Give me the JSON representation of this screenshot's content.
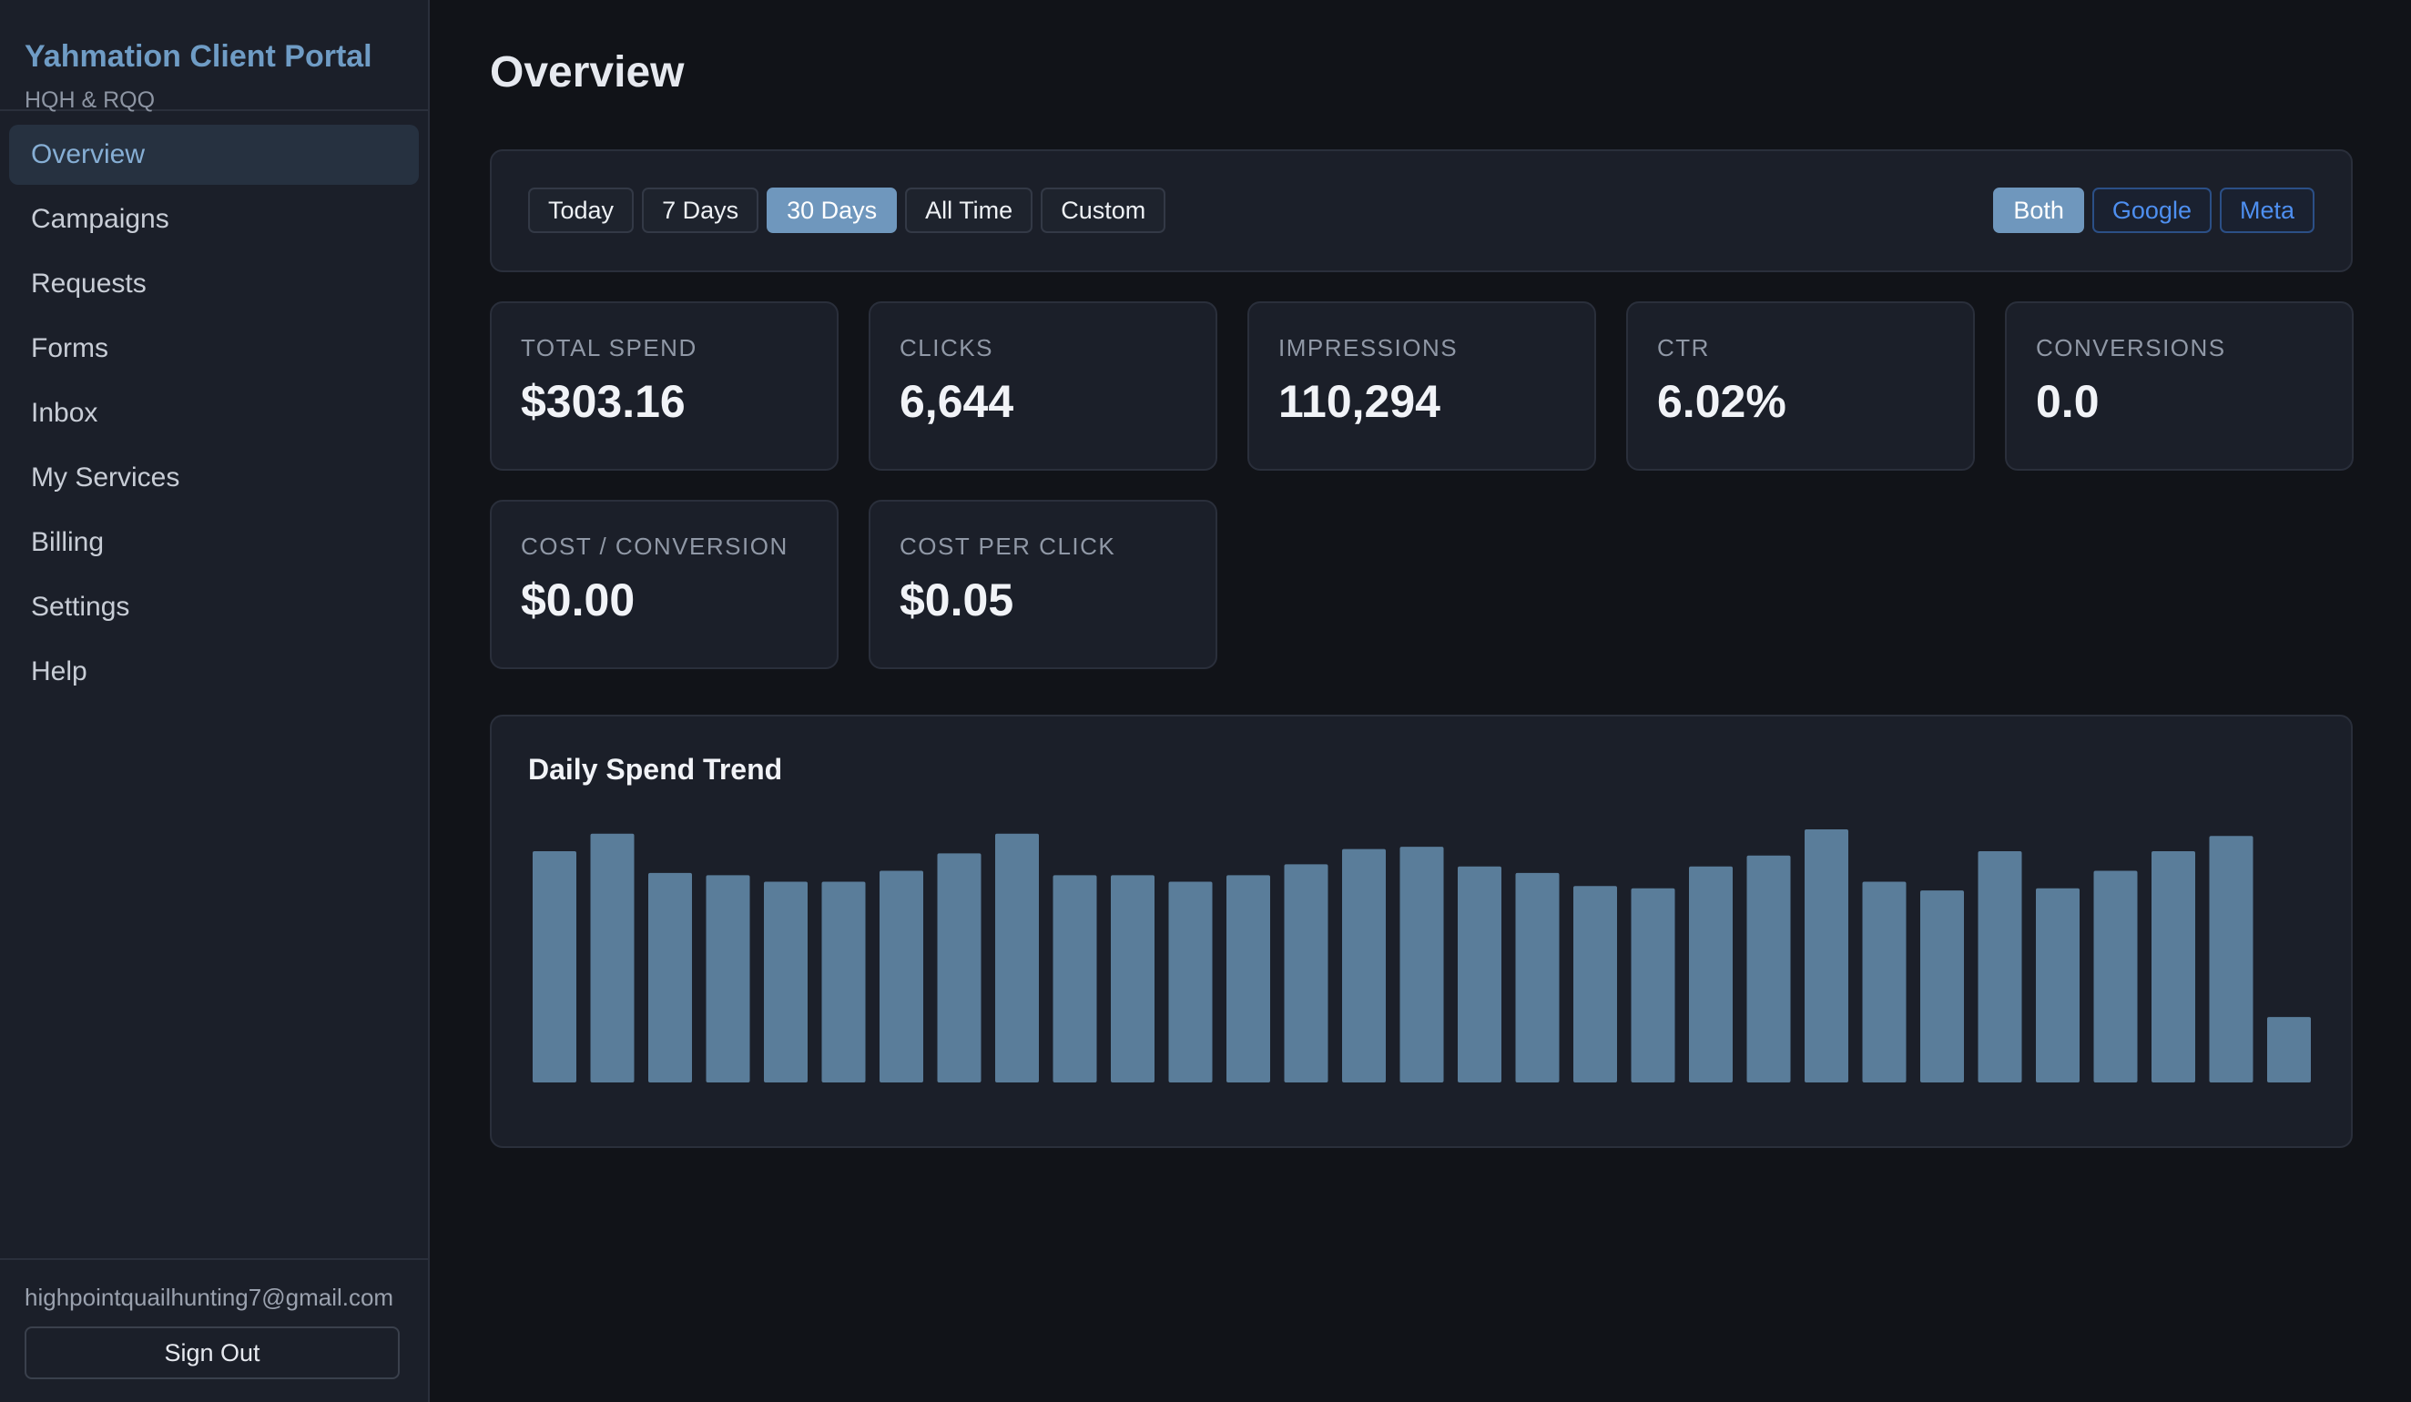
{
  "brand": {
    "title": "Yahmation Client Portal",
    "subtitle": "HQH & RQQ"
  },
  "nav": [
    {
      "label": "Overview",
      "active": true
    },
    {
      "label": "Campaigns"
    },
    {
      "label": "Requests"
    },
    {
      "label": "Forms"
    },
    {
      "label": "Inbox"
    },
    {
      "label": "My Services"
    },
    {
      "label": "Billing"
    },
    {
      "label": "Settings"
    },
    {
      "label": "Help"
    }
  ],
  "user": {
    "email": "highpointquailhunting7@gmail.com",
    "signout_label": "Sign Out"
  },
  "page": {
    "title": "Overview"
  },
  "filters": {
    "ranges": [
      "Today",
      "7 Days",
      "30 Days",
      "All Time",
      "Custom"
    ],
    "active_range": "30 Days",
    "platforms": [
      "Both",
      "Google",
      "Meta"
    ],
    "active_platform": "Both"
  },
  "stats": [
    {
      "label": "TOTAL SPEND",
      "value": "$303.16"
    },
    {
      "label": "CLICKS",
      "value": "6,644"
    },
    {
      "label": "IMPRESSIONS",
      "value": "110,294"
    },
    {
      "label": "CTR",
      "value": "6.02%"
    },
    {
      "label": "CONVERSIONS",
      "value": "0.0"
    },
    {
      "label": "COST / CONVERSION",
      "value": "$0.00"
    },
    {
      "label": "COST PER CLICK",
      "value": "$0.05"
    }
  ],
  "colors": {
    "accent": "#6f9cc5",
    "bar": "#5a7d9a",
    "background": "#111318",
    "panel": "#1b1f29"
  },
  "chart_data": {
    "type": "bar",
    "title": "Daily Spend Trend",
    "xlabel": "",
    "ylabel": "",
    "grid": false,
    "values": [
      10.6,
      11.4,
      9.6,
      9.5,
      9.2,
      9.2,
      9.7,
      10.5,
      11.4,
      9.5,
      9.5,
      9.2,
      9.5,
      10.0,
      10.7,
      10.8,
      9.9,
      9.6,
      9.0,
      8.9,
      9.9,
      10.4,
      11.6,
      9.2,
      8.8,
      10.6,
      8.9,
      9.7,
      10.6,
      11.3,
      3.0
    ]
  }
}
